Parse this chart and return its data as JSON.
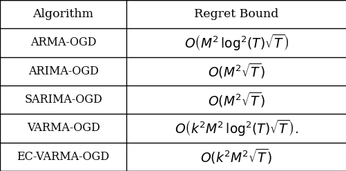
{
  "col_headers": [
    "Algorithm",
    "Regret Bound"
  ],
  "rows": [
    [
      "ARMA-OGD",
      "$O\\left(M^2\\,\\mathrm{log}^2(T)\\sqrt{T}\\right)$"
    ],
    [
      "ARIMA-OGD",
      "$O\\left(M^2\\sqrt{T}\\right)$"
    ],
    [
      "SARIMA-OGD",
      "$O\\left(M^2\\sqrt{T}\\right)$"
    ],
    [
      "VARMA-OGD",
      "$O\\left(k^2M^2\\,\\mathrm{log}^2(T)\\sqrt{T}\\right).$"
    ],
    [
      "EC-VARMA-OGD",
      "$O\\left(k^2M^2\\sqrt{T}\\right)$"
    ]
  ],
  "col_split": 0.365,
  "bg_color": "#ffffff",
  "text_color": "#000000",
  "line_color": "#000000",
  "header_fontsize": 12.5,
  "cell_fontsize": 11.5,
  "math_fontsize": 13.5,
  "fig_width": 5.02,
  "fig_height": 2.48,
  "dpi": 100
}
